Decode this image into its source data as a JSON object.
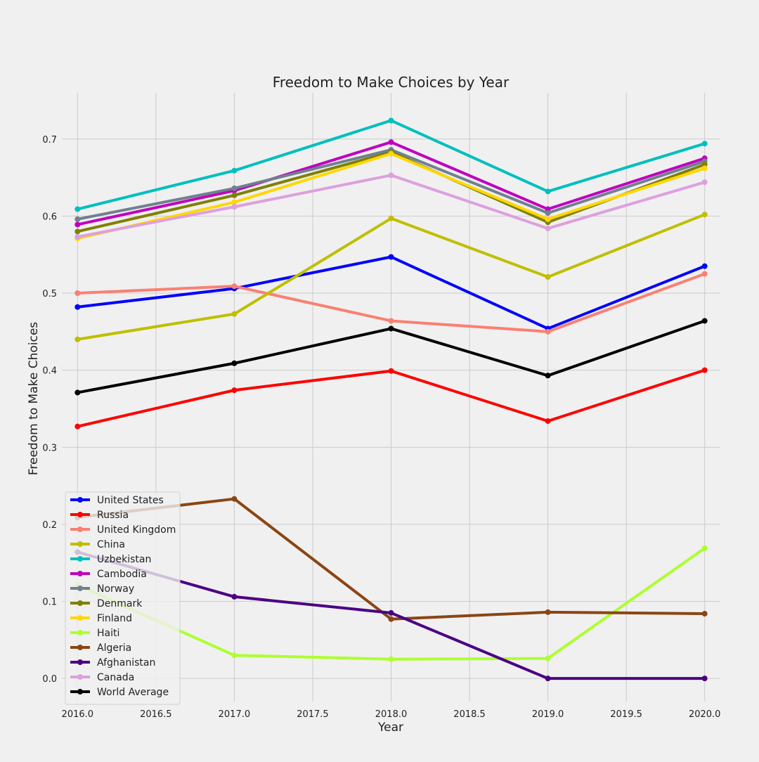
{
  "chart_data": {
    "type": "line",
    "title": "Freedom to Make Choices by Year",
    "xlabel": "Year",
    "ylabel": "Freedom to Make Choices",
    "xlim": [
      2015.9,
      2020.1
    ],
    "ylim": [
      -0.03,
      0.76
    ],
    "x_ticks": [
      2016.0,
      2016.5,
      2017.0,
      2017.5,
      2018.0,
      2018.5,
      2019.0,
      2019.5,
      2020.0
    ],
    "x_tick_labels": [
      "2016.0",
      "2016.5",
      "2017.0",
      "2017.5",
      "2018.0",
      "2018.5",
      "2019.0",
      "2019.5",
      "2020.0"
    ],
    "y_ticks": [
      0.0,
      0.1,
      0.2,
      0.3,
      0.4,
      0.5,
      0.6,
      0.7
    ],
    "y_tick_labels": [
      "0.0",
      "0.1",
      "0.2",
      "0.3",
      "0.4",
      "0.5",
      "0.6",
      "0.7"
    ],
    "grid": true,
    "legend_position": "lower-left",
    "x": [
      2016,
      2017,
      2018,
      2019,
      2020
    ],
    "series": [
      {
        "name": "United States",
        "color": "#0000ff",
        "values": [
          0.482,
          0.506,
          0.547,
          0.454,
          0.535
        ]
      },
      {
        "name": "Russia",
        "color": "#ff0000",
        "values": [
          0.327,
          0.374,
          0.399,
          0.334,
          0.4
        ]
      },
      {
        "name": "United Kingdom",
        "color": "#fa8072",
        "values": [
          0.5,
          0.509,
          0.464,
          0.45,
          0.525
        ]
      },
      {
        "name": "China",
        "color": "#bfbf00",
        "values": [
          0.44,
          0.473,
          0.597,
          0.521,
          0.602
        ]
      },
      {
        "name": "Uzbekistan",
        "color": "#00bfbf",
        "values": [
          0.609,
          0.659,
          0.724,
          0.632,
          0.694
        ]
      },
      {
        "name": "Cambodia",
        "color": "#bf00bf",
        "values": [
          0.589,
          0.633,
          0.696,
          0.609,
          0.675
        ]
      },
      {
        "name": "Norway",
        "color": "#708090",
        "values": [
          0.596,
          0.636,
          0.686,
          0.604,
          0.671
        ]
      },
      {
        "name": "Denmark",
        "color": "#808000",
        "values": [
          0.58,
          0.627,
          0.683,
          0.592,
          0.667
        ]
      },
      {
        "name": "Finland",
        "color": "#ffd700",
        "values": [
          0.571,
          0.618,
          0.681,
          0.596,
          0.662
        ]
      },
      {
        "name": "Haiti",
        "color": "#adff2f",
        "values": [
          0.121,
          0.03,
          0.025,
          0.026,
          0.169
        ]
      },
      {
        "name": "Algeria",
        "color": "#8b4513",
        "values": [
          0.209,
          0.233,
          0.077,
          0.086,
          0.084
        ]
      },
      {
        "name": "Afghanistan",
        "color": "#4b0082",
        "values": [
          0.164,
          0.106,
          0.085,
          0.0,
          0.0
        ]
      },
      {
        "name": "Canada",
        "color": "#dda0dd",
        "values": [
          0.573,
          0.612,
          0.653,
          0.584,
          0.644
        ]
      },
      {
        "name": "World Average",
        "color": "#000000",
        "values": [
          0.371,
          0.409,
          0.454,
          0.393,
          0.464
        ]
      }
    ]
  }
}
